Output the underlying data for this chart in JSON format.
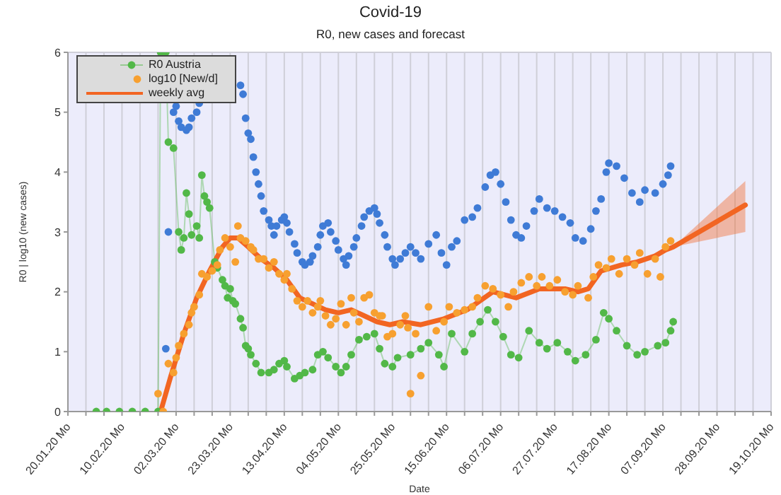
{
  "chart_data": {
    "type": "line",
    "title": "Covid-19",
    "subtitle": "R0, new cases and forecast",
    "xlabel": "Date",
    "ylabel": "R0 | log10 (new cases)",
    "xlim": [
      "--01-20",
      "--10-19"
    ],
    "ylim": [
      0,
      6
    ],
    "yticks": [
      0,
      1,
      2,
      3,
      4,
      5,
      6
    ],
    "xticks": [
      {
        "value": "--01-20",
        "label": "20.01.20 Mo"
      },
      {
        "value": "--01-27",
        "label": null
      },
      {
        "value": "--02-03",
        "label": null
      },
      {
        "value": "--02-10",
        "label": "10.02.20 Mo"
      },
      {
        "value": "--02-17",
        "label": null
      },
      {
        "value": "--02-24",
        "label": null
      },
      {
        "value": "--03-02",
        "label": "02.03.20 Mo"
      },
      {
        "value": "--03-09",
        "label": null
      },
      {
        "value": "--03-16",
        "label": null
      },
      {
        "value": "--03-23",
        "label": "23.03.20 Mo"
      },
      {
        "value": "--03-30",
        "label": null
      },
      {
        "value": "--04-06",
        "label": null
      },
      {
        "value": "--04-13",
        "label": "13.04.20 Mo"
      },
      {
        "value": "--04-20",
        "label": null
      },
      {
        "value": "--04-27",
        "label": null
      },
      {
        "value": "--05-04",
        "label": "04.05.20 Mo"
      },
      {
        "value": "--05-11",
        "label": null
      },
      {
        "value": "--05-18",
        "label": null
      },
      {
        "value": "--05-25",
        "label": "25.05.20 Mo"
      },
      {
        "value": "--06-01",
        "label": null
      },
      {
        "value": "--06-08",
        "label": null
      },
      {
        "value": "--06-15",
        "label": "15.06.20 Mo"
      },
      {
        "value": "--06-22",
        "label": null
      },
      {
        "value": "--06-29",
        "label": null
      },
      {
        "value": "--07-06",
        "label": "06.07.20 Mo"
      },
      {
        "value": "--07-13",
        "label": null
      },
      {
        "value": "--07-20",
        "label": null
      },
      {
        "value": "--07-27",
        "label": "27.07.20 Mo"
      },
      {
        "value": "--08-03",
        "label": null
      },
      {
        "value": "--08-10",
        "label": null
      },
      {
        "value": "--08-17",
        "label": "17.08.20 Mo"
      },
      {
        "value": "--08-24",
        "label": null
      },
      {
        "value": "--08-31",
        "label": null
      },
      {
        "value": "--09-07",
        "label": "07.09.20 Mo"
      },
      {
        "value": "--09-14",
        "label": null
      },
      {
        "value": "--09-21",
        "label": null
      },
      {
        "value": "--09-28",
        "label": "28.09.20 Mo"
      },
      {
        "value": "--10-05",
        "label": null
      },
      {
        "value": "--10-12",
        "label": null
      },
      {
        "value": "--10-19",
        "label": "19.10.20 Mo"
      }
    ],
    "grid": true,
    "legend": "top left",
    "series": [
      {
        "type": "scatter",
        "marker": "circle",
        "color": "#3f7bd6",
        "x": [
          "--02-27",
          "--02-28",
          "--03-01",
          "--03-02",
          "--03-03",
          "--03-04",
          "--03-06",
          "--03-07",
          "--03-08",
          "--03-10",
          "--03-11",
          "--03-27",
          "--03-28",
          "--03-29",
          "--03-30",
          "--03-31",
          "--04-01",
          "--04-02",
          "--04-03",
          "--04-04",
          "--04-05",
          "--04-07",
          "--04-08",
          "--04-09",
          "--04-10",
          "--04-12",
          "--04-13",
          "--04-14",
          "--04-15",
          "--04-17",
          "--04-18",
          "--04-20",
          "--04-21",
          "--04-23",
          "--04-24",
          "--04-26",
          "--04-27",
          "--04-28",
          "--04-30",
          "--05-01",
          "--05-03",
          "--05-04",
          "--05-06",
          "--05-07",
          "--05-08",
          "--05-10",
          "--05-11",
          "--05-13",
          "--05-14",
          "--05-16",
          "--05-18",
          "--05-19",
          "--05-20",
          "--05-22",
          "--05-23",
          "--05-25",
          "--05-26",
          "--05-28",
          "--05-30",
          "--06-01",
          "--06-03",
          "--06-05",
          "--06-08",
          "--06-11",
          "--06-13",
          "--06-15",
          "--06-17",
          "--06-19",
          "--06-22",
          "--06-25",
          "--06-27",
          "--06-30",
          "--07-02",
          "--07-04",
          "--07-06",
          "--07-08",
          "--07-10",
          "--07-12",
          "--07-14",
          "--07-16",
          "--07-19",
          "--07-21",
          "--07-24",
          "--07-27",
          "--07-30",
          "--08-02",
          "--08-04",
          "--08-07",
          "--08-10",
          "--08-12",
          "--08-14",
          "--08-16",
          "--08-17",
          "--08-20",
          "--08-23",
          "--08-26",
          "--08-29",
          "--08-31",
          "--09-04",
          "--09-07",
          "--09-09",
          "--09-10"
        ],
        "values": [
          1.05,
          3.0,
          5.0,
          5.1,
          4.85,
          4.75,
          4.7,
          4.75,
          4.9,
          5.0,
          5.15,
          5.45,
          5.3,
          4.9,
          4.65,
          4.55,
          4.25,
          4.0,
          3.8,
          3.6,
          3.35,
          3.2,
          3.1,
          2.95,
          3.1,
          3.2,
          3.25,
          3.15,
          3.0,
          2.8,
          2.65,
          2.5,
          2.45,
          2.5,
          2.6,
          2.75,
          2.95,
          3.1,
          3.15,
          3.0,
          2.85,
          2.7,
          2.55,
          2.45,
          2.6,
          2.75,
          2.9,
          3.1,
          3.25,
          3.35,
          3.4,
          3.3,
          3.15,
          2.95,
          2.75,
          2.55,
          2.45,
          2.55,
          2.65,
          2.75,
          2.65,
          2.55,
          2.8,
          2.95,
          2.65,
          2.45,
          2.75,
          2.85,
          3.2,
          3.25,
          3.4,
          3.75,
          3.95,
          4.0,
          3.8,
          3.5,
          3.2,
          2.95,
          2.9,
          3.1,
          3.35,
          3.55,
          3.4,
          3.35,
          3.25,
          3.15,
          2.9,
          2.85,
          3.05,
          3.35,
          3.55,
          4.0,
          4.15,
          4.1,
          3.9,
          3.65,
          3.5,
          3.7,
          3.65,
          3.8,
          3.95,
          4.1
        ]
      },
      {
        "name": "R0 Austria",
        "marker": "circle",
        "color": "#52b848",
        "x": [
          "--01-31",
          "--02-04",
          "--02-09",
          "--02-14",
          "--02-19",
          "--02-24",
          "--02-25",
          "--02-27",
          "--02-28",
          "--03-01",
          "--03-03",
          "--03-04",
          "--03-05",
          "--03-06",
          "--03-07",
          "--03-08",
          "--03-10",
          "--03-11",
          "--03-12",
          "--03-13",
          "--03-14",
          "--03-15",
          "--03-17",
          "--03-18",
          "--03-20",
          "--03-21",
          "--03-22",
          "--03-23",
          "--03-24",
          "--03-25",
          "--03-27",
          "--03-28",
          "--03-29",
          "--03-30",
          "--03-31",
          "--04-02",
          "--04-04",
          "--04-07",
          "--04-09",
          "--04-11",
          "--04-13",
          "--04-14",
          "--04-17",
          "--04-19",
          "--04-21",
          "--04-24",
          "--04-26",
          "--04-28",
          "--04-30",
          "--05-03",
          "--05-05",
          "--05-07",
          "--05-09",
          "--05-12",
          "--05-15",
          "--05-18",
          "--05-20",
          "--05-22",
          "--05-25",
          "--05-27",
          "--06-01",
          "--06-05",
          "--06-08",
          "--06-12",
          "--06-14",
          "--06-17",
          "--06-22",
          "--06-25",
          "--06-28",
          "--07-01",
          "--07-04",
          "--07-07",
          "--07-10",
          "--07-13",
          "--07-17",
          "--07-21",
          "--07-24",
          "--07-28",
          "--08-01",
          "--08-04",
          "--08-08",
          "--08-12",
          "--08-15",
          "--08-17",
          "--08-20",
          "--08-24",
          "--08-28",
          "--08-31",
          "--09-05",
          "--09-08",
          "--09-10",
          "--09-11"
        ],
        "values": [
          0,
          0,
          0,
          0,
          0,
          0,
          6,
          6,
          4.5,
          4.4,
          3.0,
          2.7,
          2.9,
          3.65,
          3.3,
          2.95,
          3.1,
          2.9,
          3.95,
          3.6,
          3.5,
          3.4,
          2.5,
          2.4,
          2.2,
          2.1,
          1.9,
          2.05,
          1.85,
          1.8,
          1.55,
          1.4,
          1.1,
          1.05,
          0.95,
          0.8,
          0.65,
          0.65,
          0.7,
          0.8,
          0.85,
          0.75,
          0.55,
          0.6,
          0.65,
          0.7,
          0.95,
          1.0,
          0.9,
          0.75,
          0.65,
          0.75,
          0.95,
          1.2,
          1.25,
          1.3,
          1.05,
          0.8,
          0.75,
          0.9,
          0.95,
          1.05,
          1.15,
          0.95,
          0.75,
          1.3,
          1.0,
          1.3,
          1.5,
          1.7,
          1.5,
          1.25,
          0.95,
          0.9,
          1.35,
          1.15,
          1.05,
          1.15,
          1.0,
          0.85,
          0.95,
          1.2,
          1.65,
          1.55,
          1.35,
          1.1,
          0.95,
          1.0,
          1.1,
          1.15,
          1.35,
          1.5
        ]
      },
      {
        "type": "scatter",
        "name": "log10 [New/d]",
        "marker": "circle",
        "color": "#f7a030",
        "x": [
          "--02-24",
          "--02-26",
          "--02-28",
          "--03-01",
          "--03-02",
          "--03-03",
          "--03-05",
          "--03-07",
          "--03-08",
          "--03-09",
          "--03-11",
          "--03-12",
          "--03-14",
          "--03-16",
          "--03-18",
          "--03-19",
          "--03-21",
          "--03-23",
          "--03-25",
          "--03-26",
          "--03-27",
          "--03-29",
          "--03-31",
          "--04-01",
          "--04-03",
          "--04-05",
          "--04-07",
          "--04-09",
          "--04-11",
          "--04-13",
          "--04-14",
          "--04-16",
          "--04-18",
          "--04-20",
          "--04-22",
          "--04-24",
          "--04-26",
          "--04-27",
          "--04-29",
          "--05-01",
          "--05-03",
          "--05-05",
          "--05-07",
          "--05-09",
          "--05-10",
          "--05-12",
          "--05-14",
          "--05-16",
          "--05-18",
          "--05-20",
          "--05-21",
          "--05-23",
          "--05-25",
          "--05-28",
          "--05-30",
          "--05-31",
          "--06-01",
          "--06-03",
          "--06-05",
          "--06-08",
          "--06-11",
          "--06-14",
          "--06-16",
          "--06-19",
          "--06-22",
          "--06-25",
          "--06-27",
          "--06-30",
          "--07-03",
          "--07-06",
          "--07-09",
          "--07-11",
          "--07-14",
          "--07-17",
          "--07-20",
          "--07-22",
          "--07-25",
          "--07-28",
          "--07-31",
          "--08-03",
          "--08-05",
          "--08-09",
          "--08-11",
          "--08-13",
          "--08-16",
          "--08-18",
          "--08-21",
          "--08-24",
          "--08-27",
          "--08-29",
          "--09-01",
          "--09-04",
          "--09-06",
          "--09-08",
          "--09-10"
        ],
        "values": [
          0.3,
          0,
          0.8,
          0.65,
          0.9,
          1.1,
          1.3,
          1.45,
          1.65,
          1.75,
          1.95,
          2.3,
          2.25,
          2.35,
          2.45,
          2.7,
          2.9,
          2.75,
          2.5,
          3.1,
          2.9,
          2.85,
          2.75,
          2.7,
          2.55,
          2.55,
          2.4,
          2.5,
          2.3,
          2.2,
          2.3,
          2.05,
          1.85,
          1.75,
          1.85,
          1.65,
          1.75,
          1.85,
          1.6,
          1.45,
          1.55,
          1.8,
          1.45,
          1.9,
          1.65,
          1.5,
          1.9,
          1.95,
          1.65,
          1.6,
          1.6,
          1.25,
          1.3,
          1.45,
          1.6,
          1.4,
          0.3,
          1.3,
          0.6,
          1.75,
          1.35,
          1.5,
          1.75,
          1.65,
          1.7,
          1.75,
          1.9,
          2.1,
          2.05,
          1.95,
          1.75,
          2.0,
          2.15,
          2.25,
          2.1,
          2.25,
          2.1,
          2.2,
          2.0,
          1.95,
          2.1,
          1.9,
          2.25,
          2.45,
          2.4,
          2.55,
          2.3,
          2.55,
          2.45,
          2.65,
          2.3,
          2.55,
          2.25,
          2.75,
          2.85
        ]
      },
      {
        "name": "weekly avg",
        "marker": "none",
        "color": "#f26522",
        "x": [
          "--02-25",
          "--02-27",
          "--02-29",
          "--03-05",
          "--03-10",
          "--03-15",
          "--03-20",
          "--03-23",
          "--03-26",
          "--03-30",
          "--04-04",
          "--04-09",
          "--04-14",
          "--04-19",
          "--04-24",
          "--04-29",
          "--05-04",
          "--05-09",
          "--05-14",
          "--05-19",
          "--05-24",
          "--05-29",
          "--06-05",
          "--06-14",
          "--06-23",
          "--07-03",
          "--07-12",
          "--07-21",
          "--07-31",
          "--08-05",
          "--08-09",
          "--08-14",
          "--08-22",
          "--08-28",
          "--09-04",
          "--09-08",
          "--09-11",
          "--10-09"
        ],
        "values": [
          0,
          0.3,
          0.6,
          1.3,
          1.9,
          2.35,
          2.75,
          2.9,
          2.9,
          2.75,
          2.55,
          2.4,
          2.2,
          1.9,
          1.8,
          1.7,
          1.65,
          1.7,
          1.6,
          1.5,
          1.45,
          1.5,
          1.45,
          1.55,
          1.7,
          2.0,
          1.9,
          2.05,
          2.05,
          2.0,
          2.05,
          2.35,
          2.45,
          2.5,
          2.6,
          2.7,
          2.75,
          3.45
        ],
        "lower": [
          null,
          null,
          null,
          null,
          null,
          null,
          null,
          null,
          null,
          null,
          null,
          null,
          null,
          null,
          null,
          null,
          null,
          null,
          null,
          null,
          null,
          null,
          null,
          null,
          null,
          null,
          null,
          null,
          null,
          null,
          null,
          null,
          null,
          null,
          null,
          null,
          2.75,
          3.0
        ],
        "upper": [
          null,
          null,
          null,
          null,
          null,
          null,
          null,
          null,
          null,
          null,
          null,
          null,
          null,
          null,
          null,
          null,
          null,
          null,
          null,
          null,
          null,
          null,
          null,
          null,
          null,
          null,
          null,
          null,
          null,
          null,
          null,
          null,
          null,
          null,
          null,
          null,
          2.75,
          3.85
        ]
      }
    ]
  }
}
